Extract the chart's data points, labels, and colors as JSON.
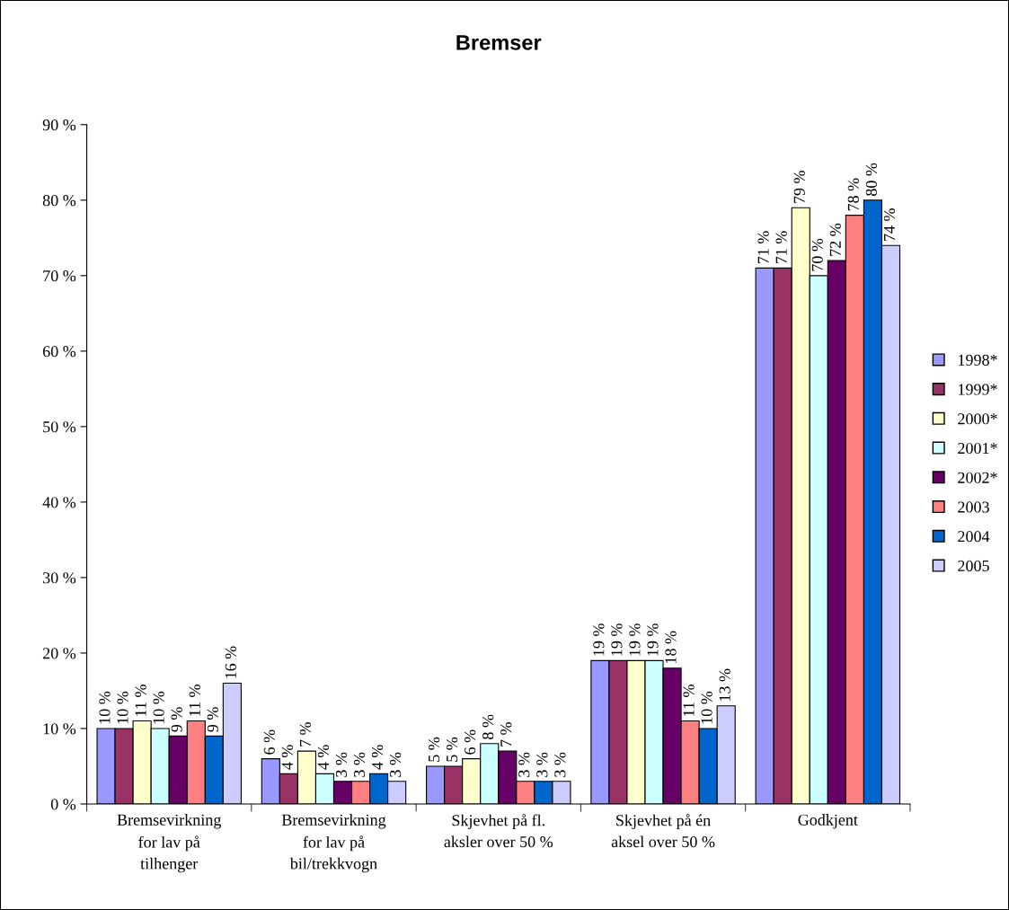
{
  "chart_data": {
    "type": "bar",
    "title": "Bremser",
    "categories": [
      "Bremsevirkning\nfor lav på\ntilhenger",
      "Bremsevirkning\nfor lav på\nbil/trekkvogn",
      "Skjevhet på fl.\naksler over 50 %",
      "Skjevhet på én\naksel over 50 %",
      "Godkjent"
    ],
    "series": [
      {
        "name": "1998*",
        "color": "#9999ff",
        "values": [
          10,
          6,
          5,
          19,
          71
        ],
        "value_labels": [
          "10 %",
          "6 %",
          "5 %",
          "19 %",
          "71 %"
        ]
      },
      {
        "name": "1999*",
        "color": "#993366",
        "values": [
          10,
          4,
          5,
          19,
          71
        ],
        "value_labels": [
          "10 %",
          "4 %",
          "5 %",
          "19 %",
          "71 %"
        ]
      },
      {
        "name": "2000*",
        "color": "#ffffcc",
        "values": [
          11,
          7,
          6,
          19,
          79
        ],
        "value_labels": [
          "11 %",
          "7 %",
          "6 %",
          "19 %",
          "79 %"
        ]
      },
      {
        "name": "2001*",
        "color": "#ccffff",
        "values": [
          10,
          4,
          8,
          19,
          70
        ],
        "value_labels": [
          "10 %",
          "4 %",
          "8 %",
          "19 %",
          "70 %"
        ]
      },
      {
        "name": "2002*",
        "color": "#660066",
        "values": [
          9,
          3,
          7,
          18,
          72
        ],
        "value_labels": [
          "9 %",
          "3 %",
          "7 %",
          "18 %",
          "72 %"
        ]
      },
      {
        "name": "2003",
        "color": "#ff8080",
        "values": [
          11,
          3,
          3,
          11,
          78
        ],
        "value_labels": [
          "11 %",
          "3 %",
          "3 %",
          "11 %",
          "78 %"
        ]
      },
      {
        "name": "2004",
        "color": "#0066cc",
        "values": [
          9,
          4,
          3,
          10,
          80
        ],
        "value_labels": [
          "9 %",
          "4 %",
          "3 %",
          "10 %",
          "80 %"
        ]
      },
      {
        "name": "2005",
        "color": "#ccccff",
        "values": [
          16,
          3,
          3,
          13,
          74
        ],
        "value_labels": [
          "16 %",
          "3 %",
          "3 %",
          "13 %",
          "74 %"
        ]
      }
    ],
    "ylim": [
      0,
      90
    ],
    "yticks": [
      {
        "value": 0,
        "label": "0 %"
      },
      {
        "value": 10,
        "label": "10 %"
      },
      {
        "value": 20,
        "label": "20 %"
      },
      {
        "value": 30,
        "label": "30 %"
      },
      {
        "value": 40,
        "label": "40 %"
      },
      {
        "value": 50,
        "label": "50 %"
      },
      {
        "value": 60,
        "label": "60 %"
      },
      {
        "value": 70,
        "label": "70 %"
      },
      {
        "value": 80,
        "label": "80 %"
      },
      {
        "value": 90,
        "label": "90 %"
      }
    ],
    "grid": false,
    "legend": "right"
  }
}
